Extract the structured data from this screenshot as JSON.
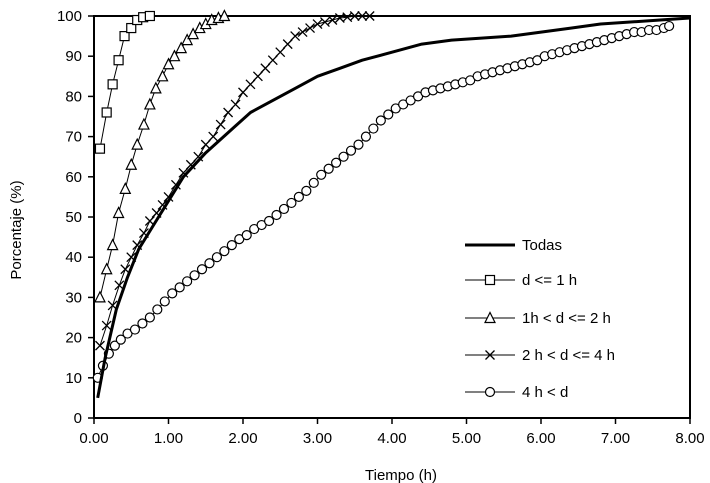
{
  "chart_data": {
    "type": "line",
    "title": "",
    "xlabel": "Tiempo (h)",
    "ylabel": "Porcentaje (%)",
    "xlim": [
      0,
      8
    ],
    "ylim": [
      0,
      100
    ],
    "x_ticks": [
      "0.00",
      "1.00",
      "2.00",
      "3.00",
      "4.00",
      "5.00",
      "6.00",
      "7.00",
      "8.00"
    ],
    "y_ticks": [
      "0",
      "10",
      "20",
      "30",
      "40",
      "50",
      "60",
      "70",
      "80",
      "90",
      "100"
    ],
    "grid": false,
    "legend_position": "bottom-right",
    "series": [
      {
        "name": "Todas",
        "marker": "none",
        "x": [
          0.05,
          0.15,
          0.3,
          0.45,
          0.6,
          0.8,
          1.0,
          1.2,
          1.5,
          1.8,
          2.1,
          2.4,
          2.7,
          3.0,
          3.3,
          3.6,
          4.0,
          4.4,
          4.8,
          5.2,
          5.6,
          6.0,
          6.4,
          6.8,
          7.2,
          7.6,
          8.0
        ],
        "y": [
          5,
          15,
          27,
          35,
          42,
          48,
          54,
          60,
          66,
          71,
          76,
          79,
          82,
          85,
          87,
          89,
          91,
          93,
          94,
          94.5,
          95,
          96,
          97,
          98,
          98.5,
          99,
          99.5
        ]
      },
      {
        "name": "d <= 1 h",
        "marker": "square",
        "x": [
          0.08,
          0.17,
          0.25,
          0.33,
          0.41,
          0.5,
          0.58,
          0.66,
          0.75
        ],
        "y": [
          67,
          76,
          83,
          89,
          95,
          97,
          99,
          99.7,
          100
        ]
      },
      {
        "name": "1h < d <= 2 h",
        "marker": "triangle",
        "x": [
          0.08,
          0.17,
          0.25,
          0.33,
          0.42,
          0.5,
          0.58,
          0.67,
          0.75,
          0.83,
          0.92,
          1.0,
          1.08,
          1.17,
          1.25,
          1.33,
          1.42,
          1.5,
          1.58,
          1.67,
          1.75
        ],
        "y": [
          30,
          37,
          43,
          51,
          57,
          63,
          68,
          73,
          78,
          82,
          85,
          88,
          90,
          92,
          94,
          95.5,
          97,
          98,
          99,
          99.5,
          100
        ]
      },
      {
        "name": "2 h < d <= 4 h",
        "marker": "cross",
        "x": [
          0.08,
          0.17,
          0.25,
          0.34,
          0.42,
          0.5,
          0.58,
          0.67,
          0.75,
          0.84,
          0.92,
          1.0,
          1.1,
          1.2,
          1.3,
          1.4,
          1.5,
          1.6,
          1.7,
          1.8,
          1.9,
          2.0,
          2.1,
          2.2,
          2.3,
          2.4,
          2.5,
          2.6,
          2.7,
          2.8,
          2.9,
          3.0,
          3.1,
          3.2,
          3.3,
          3.4,
          3.5,
          3.6,
          3.7
        ],
        "y": [
          18,
          23,
          28,
          33,
          37,
          40,
          43,
          46,
          49,
          51,
          53,
          55,
          58,
          61,
          63,
          65,
          68,
          70,
          73,
          76,
          78,
          81,
          83,
          85,
          87,
          89,
          91,
          93,
          95,
          96,
          97,
          98,
          98.5,
          99,
          99.5,
          99.7,
          100,
          100,
          100
        ]
      },
      {
        "name": "4 h < d",
        "marker": "circle",
        "x": [
          0.05,
          0.12,
          0.2,
          0.28,
          0.36,
          0.45,
          0.55,
          0.65,
          0.75,
          0.85,
          0.95,
          1.05,
          1.15,
          1.25,
          1.35,
          1.45,
          1.55,
          1.65,
          1.75,
          1.85,
          1.95,
          2.05,
          2.15,
          2.25,
          2.35,
          2.45,
          2.55,
          2.65,
          2.75,
          2.85,
          2.95,
          3.05,
          3.15,
          3.25,
          3.35,
          3.45,
          3.55,
          3.65,
          3.75,
          3.85,
          3.95,
          4.05,
          4.15,
          4.25,
          4.35,
          4.45,
          4.55,
          4.65,
          4.75,
          4.85,
          4.95,
          5.05,
          5.15,
          5.25,
          5.35,
          5.45,
          5.55,
          5.65,
          5.75,
          5.85,
          5.95,
          6.05,
          6.15,
          6.25,
          6.35,
          6.45,
          6.55,
          6.65,
          6.75,
          6.85,
          6.95,
          7.05,
          7.15,
          7.25,
          7.35,
          7.45,
          7.55,
          7.65,
          7.72
        ],
        "y": [
          10,
          13,
          16,
          18,
          19.5,
          21,
          22,
          23.5,
          25,
          27,
          29,
          31,
          32.5,
          34,
          35.5,
          37,
          38.5,
          40,
          41.5,
          43,
          44.5,
          45.5,
          47,
          48,
          49,
          50.5,
          52,
          53.5,
          55,
          56.5,
          58.5,
          60.5,
          62,
          63.5,
          65,
          66.5,
          68,
          70,
          72,
          74,
          75.5,
          77,
          78,
          79,
          80,
          81,
          81.5,
          82,
          82.5,
          83,
          83.5,
          84,
          85,
          85.5,
          86,
          86.5,
          87,
          87.5,
          88,
          88.5,
          89,
          90,
          90.5,
          91,
          91.5,
          92,
          92.5,
          93,
          93.5,
          94,
          94.5,
          95,
          95.5,
          96,
          96,
          96.5,
          96.5,
          97,
          97.5
        ]
      }
    ]
  }
}
